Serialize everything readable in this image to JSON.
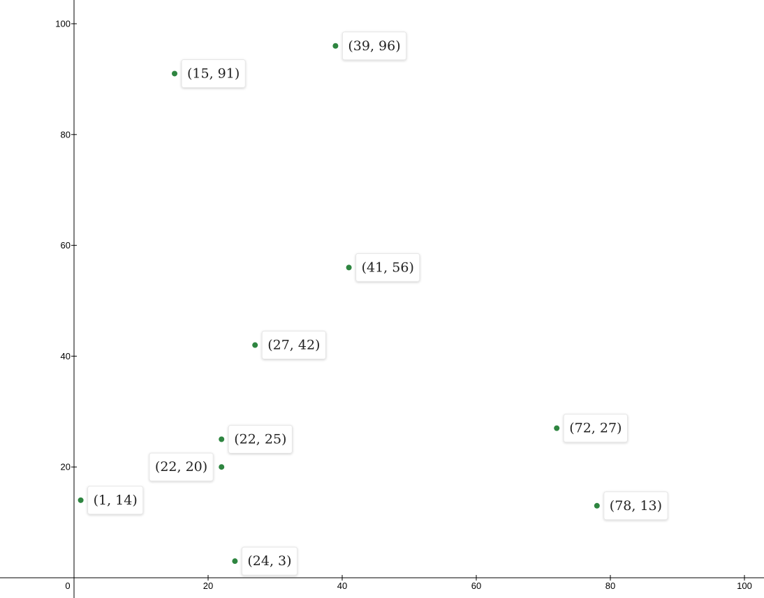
{
  "chart_data": {
    "type": "scatter",
    "title": "",
    "xlabel": "",
    "ylabel": "",
    "xlim": [
      0,
      100
    ],
    "ylim": [
      0,
      100
    ],
    "grid": false,
    "x_ticks": [
      0,
      20,
      40,
      60,
      80,
      100
    ],
    "y_ticks": [
      20,
      40,
      60,
      80,
      100
    ],
    "point_color": "#2e8540",
    "points": [
      {
        "x": 39,
        "y": 96,
        "label": "(39, 96)",
        "label_side": "right"
      },
      {
        "x": 15,
        "y": 91,
        "label": "(15, 91)",
        "label_side": "right"
      },
      {
        "x": 41,
        "y": 56,
        "label": "(41, 56)",
        "label_side": "right"
      },
      {
        "x": 27,
        "y": 42,
        "label": "(27, 42)",
        "label_side": "right"
      },
      {
        "x": 72,
        "y": 27,
        "label": "(72, 27)",
        "label_side": "right"
      },
      {
        "x": 22,
        "y": 25,
        "label": "(22, 25)",
        "label_side": "right"
      },
      {
        "x": 22,
        "y": 20,
        "label": "(22, 20)",
        "label_side": "left"
      },
      {
        "x": 1,
        "y": 14,
        "label": "(1, 14)",
        "label_side": "right"
      },
      {
        "x": 78,
        "y": 13,
        "label": "(78, 13)",
        "label_side": "right"
      },
      {
        "x": 24,
        "y": 3,
        "label": "(24, 3)",
        "label_side": "right"
      }
    ]
  }
}
